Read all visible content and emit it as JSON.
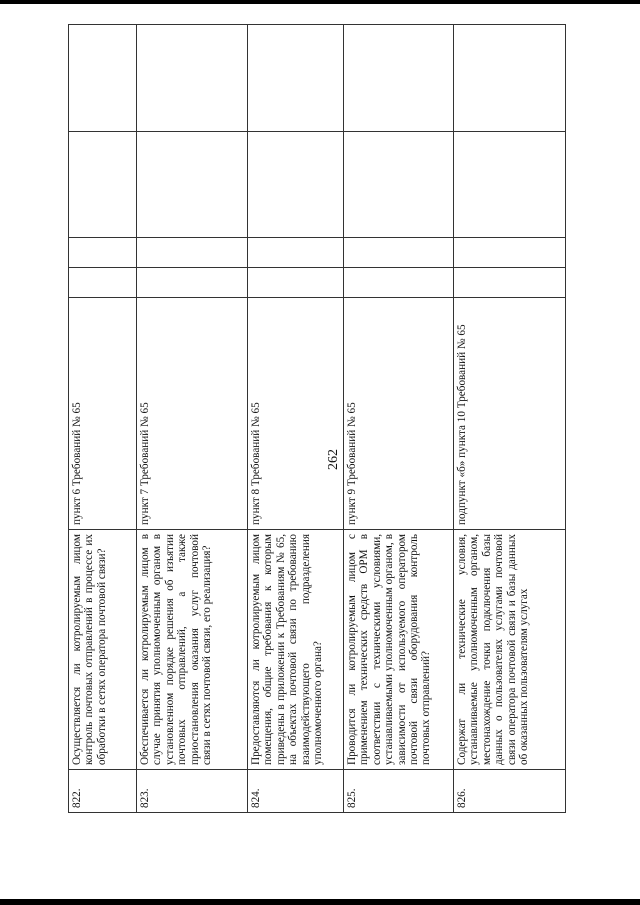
{
  "page_number": "262",
  "rows": [
    {
      "num": "822.",
      "question": "Осуществляется ли котролируемым лицом контроль почтовых отправлений в процессе их обработки в сетях оператора почтовой связи?",
      "reference": "пункт 6 Требований № 65"
    },
    {
      "num": "823.",
      "question": "Обеспечивается ли котролируемым лицом в случае принятия уполномоченным органом в установленном порядке решения об изъятии почтовых отправлений, а также приостановления оказания услуг почтовой связи в сетях почтовой связи, его реализация?",
      "reference": "пункт 7 Требований № 65"
    },
    {
      "num": "824.",
      "question": "Предоставляются ли котролируемым лицом помещения, общие требования к которым приведены в приложении к Требованиям № 65, на объектах почтовой связи по требованию взаимодействующего подразделения уполномоченного органа?",
      "reference": "пункт 8 Требований № 65"
    },
    {
      "num": "825.",
      "question": "Проводится ли котролируемым лицом с применением технических средств ОРМ в соответствии с техническими условиями, устанавливаемыми уполномоченным органом, в зависимости от используемого оператором почтовой связи оборудования контроль почтовых отправлений?",
      "reference": "пункт 9 Требований № 65"
    },
    {
      "num": "826.",
      "question": "Содержат ли технические условия, устанавливаемые уполномоченным органом, местонахождение точки подключения базы данных о пользователях услугами почтовой связи оператора почтовой связи и базы данных об оказанных пользователям услугах",
      "reference": "подпункт «б» пункта 10 Требований № 65"
    }
  ]
}
